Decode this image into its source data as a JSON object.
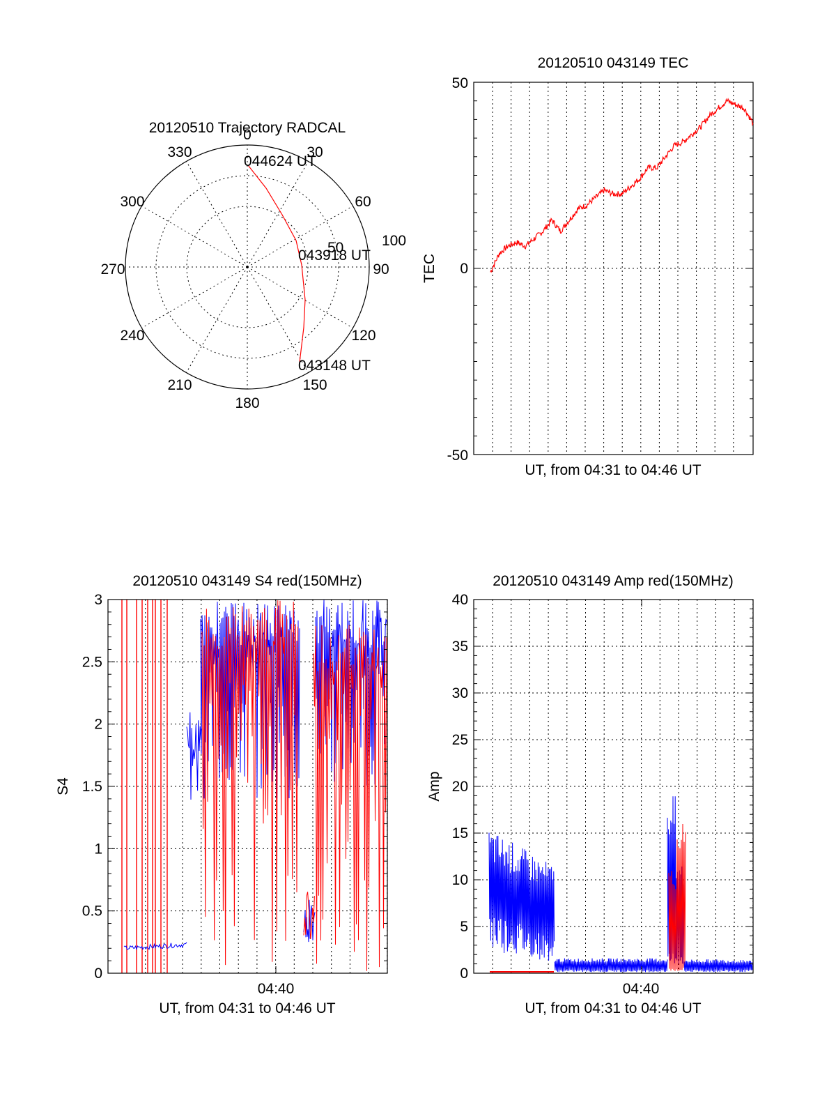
{
  "charts": {
    "polar": {
      "title": "20120510 Trajectory RADCAL",
      "azimuth_labels": [
        "0",
        "30",
        "60",
        "90",
        "120",
        "150",
        "180",
        "210",
        "240",
        "270",
        "300",
        "330"
      ],
      "ring_labels": [
        "50",
        "100"
      ],
      "start_label": "043148 UT",
      "mid_label": "043918 UT",
      "end_label": "044624 UT"
    },
    "tec": {
      "title": "20120510 043149 TEC",
      "ylabel": "TEC",
      "xlabel": "UT, from 04:31 to 04:46 UT",
      "ytick_labels": [
        "50",
        "0",
        "-50"
      ]
    },
    "s4": {
      "title": "20120510 043149 S4 red(150MHz)",
      "ylabel": "S4",
      "xlabel": "UT, from 04:31 to 04:46 UT",
      "xtick_label": "04:40",
      "ytick_labels": [
        "0",
        "0.5",
        "1",
        "1.5",
        "2",
        "2.5",
        "3"
      ]
    },
    "amp": {
      "title": "20120510 043149 Amp red(150MHz)",
      "ylabel": "Amp",
      "xlabel": "UT, from 04:31 to 04:46 UT",
      "xtick_label": "04:40",
      "ytick_labels": [
        "0",
        "5",
        "10",
        "15",
        "20",
        "25",
        "30",
        "35",
        "40"
      ]
    }
  },
  "chart_data": [
    {
      "type": "polar",
      "azimuth_deg": [
        0,
        30,
        60,
        90,
        120,
        150,
        180,
        210,
        240,
        270,
        300,
        330
      ],
      "radius_rings": [
        50,
        100
      ],
      "series": [
        {
          "color": "#ff0000",
          "points": [
            [
              165,
              75
            ],
            [
              160,
              82
            ],
            [
              140,
              90
            ],
            [
              110,
              76
            ],
            [
              50,
              68
            ],
            [
              25,
              88
            ],
            [
              8,
              98
            ]
          ]
        }
      ]
    },
    {
      "type": "line",
      "x_range_minutes": [
        0,
        15
      ],
      "ylim": [
        -50,
        50
      ],
      "series": [
        {
          "color": "#ff0000",
          "x": [
            0,
            0.5,
            1,
            1.5,
            2,
            2.5,
            3,
            3.5,
            4,
            4.5,
            5,
            5.5,
            6,
            6.5,
            7,
            7.5,
            8,
            8.5,
            9,
            9.5,
            10,
            10.5,
            11,
            11.5,
            12,
            12.5,
            13,
            13.5,
            14,
            14.5,
            15
          ],
          "y": [
            -1,
            4,
            6,
            7,
            6,
            8,
            10,
            13,
            10,
            13,
            16,
            17,
            19,
            21,
            20,
            20,
            22,
            24,
            27,
            27,
            30,
            33,
            34,
            36,
            38,
            41,
            43,
            45,
            44,
            43,
            39
          ]
        }
      ]
    },
    {
      "type": "line",
      "x_range_minutes": [
        0,
        15
      ],
      "xtick": {
        "04:40": 9
      },
      "ylim": [
        0,
        3
      ],
      "series": [
        {
          "color": "#0000ff",
          "note": ""
        },
        {
          "color": "#ff0000",
          "note": ""
        }
      ]
    },
    {
      "type": "line",
      "x_range_minutes": [
        0,
        15
      ],
      "xtick": {
        "04:40": 9
      },
      "ylim": [
        0,
        40
      ],
      "series": [
        {
          "color": "#0000ff"
        },
        {
          "color": "#ff0000"
        }
      ]
    }
  ]
}
